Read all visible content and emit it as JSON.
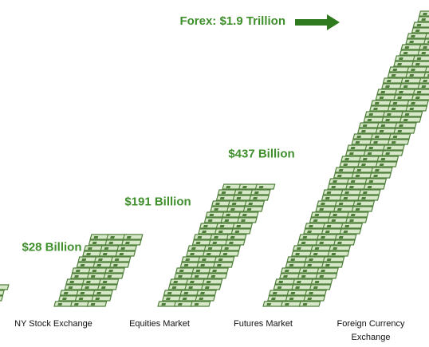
{
  "chart_data": {
    "type": "bar",
    "categories": [
      "NY Stock Exchange",
      "Equities Market",
      "Futures Market",
      "Foreign Currency Exchange"
    ],
    "values": [
      28,
      191,
      437,
      1900
    ],
    "value_labels": [
      "$28 Billion",
      "$191 Billion",
      "$437 Billion",
      "Forex: $1.9 Trillion"
    ],
    "color": "#4f7f3a"
  }
}
